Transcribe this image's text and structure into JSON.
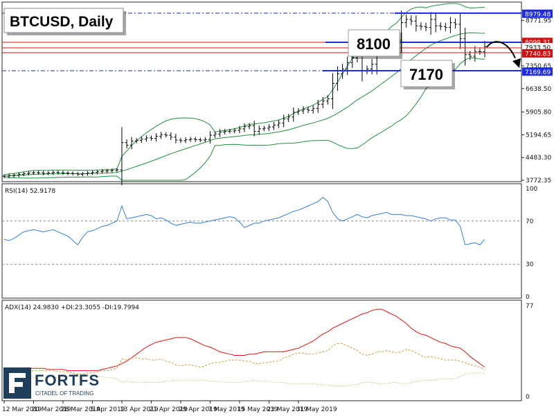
{
  "title": "BTCUSD, Daily",
  "logo": {
    "name": "FORTFS",
    "tagline": "CITADEL OF TRADING"
  },
  "annotations": {
    "level_high": "8100",
    "level_low": "7170"
  },
  "colors": {
    "price_bars": "#000000",
    "bollinger": "#1f8f3c",
    "rsi": "#2f7fd6",
    "adx": "#dd1111",
    "di_plus": "#c8a040",
    "di_minus": "#c8a040",
    "level_line": "#1e2de0",
    "resistance": "#d01010"
  },
  "chart_data": [
    {
      "type": "ohlc",
      "name": "price",
      "ylim": [
        3772.35,
        9300
      ],
      "y_ticks": [
        "8771.95",
        "7350.65",
        "6638.50",
        "5905.80",
        "5194.65",
        "4483.30",
        "3772.35"
      ],
      "x_ticks": [
        "12 Mar 2019",
        "20 Mar 2019",
        "28 Mar 2019",
        "5 Apr 2019",
        "13 Apr 2019",
        "21 Apr 2019",
        "29 Apr 2019",
        "7 May 2019",
        "15 May 2019",
        "23 May 2019",
        "31 May 2019"
      ],
      "price_tags": [
        {
          "value": 8979.48,
          "label": "8979.48",
          "style": "blue"
        },
        {
          "value": 8099.31,
          "label": "8099.31",
          "style": "red"
        },
        {
          "value": 7933.5,
          "label": "7933.50",
          "style": "plain"
        },
        {
          "value": 7740.83,
          "label": "7740.83",
          "style": "red"
        },
        {
          "value": 7169.69,
          "label": "7169.69",
          "style": "blue"
        }
      ],
      "close": [
        3900,
        3920,
        3930,
        3960,
        3980,
        4000,
        4010,
        4005,
        3990,
        4000,
        4020,
        4010,
        4000,
        3990,
        3980,
        3960,
        3975,
        4000,
        4020,
        4040,
        4060,
        4070,
        4080,
        4100,
        4950,
        4870,
        5000,
        5020,
        5060,
        5100,
        5080,
        5150,
        5200,
        5180,
        5120,
        5030,
        5010,
        5040,
        5060,
        5040,
        5030,
        5050,
        5180,
        5220,
        5280,
        5300,
        5310,
        5330,
        5380,
        5450,
        5480,
        5300,
        5380,
        5400,
        5440,
        5500,
        5560,
        5690,
        5750,
        5900,
        5940,
        5990,
        5960,
        6020,
        6150,
        6250,
        6320,
        6800,
        7100,
        7250,
        7450,
        7600,
        7700,
        7200,
        7250,
        7400,
        7850,
        7950,
        8000,
        8250,
        8150,
        8700,
        8800,
        8750,
        8600,
        8580,
        8550,
        8800,
        8600,
        8580,
        8550,
        8700,
        8650,
        8200,
        7700,
        7650,
        7800,
        7790,
        7950
      ]
    },
    {
      "type": "line",
      "name": "RSI(14) 52.9178",
      "ylim": [
        0,
        100
      ],
      "y_ticks": [
        "100",
        "70",
        "30",
        "0"
      ],
      "reference_lines": [
        70,
        30
      ],
      "values": [
        53,
        52,
        54,
        57,
        60,
        61,
        62,
        61,
        60,
        61,
        62,
        60,
        58,
        56,
        52,
        48,
        55,
        60,
        61,
        63,
        65,
        66,
        68,
        70,
        84,
        72,
        73,
        74,
        75,
        76,
        75,
        72,
        73,
        71,
        68,
        66,
        67,
        68,
        69,
        68,
        68,
        69,
        70,
        71,
        72,
        73,
        74,
        73,
        69,
        64,
        66,
        68,
        68,
        70,
        71,
        72,
        73,
        75,
        77,
        79,
        80,
        82,
        84,
        86,
        88,
        92,
        88,
        78,
        72,
        70,
        72,
        74,
        76,
        74,
        73,
        75,
        76,
        77,
        78,
        76,
        76,
        76,
        75,
        75,
        74,
        73,
        72,
        70,
        72,
        73,
        73,
        71,
        71,
        65,
        48,
        49,
        50,
        48,
        53
      ]
    },
    {
      "type": "line",
      "name": "ADX(14) 24.9830 +DI:23.3055 -DI:19.7994",
      "ylim": [
        0,
        77
      ],
      "y_ticks": [
        "77",
        "0"
      ],
      "series": [
        {
          "name": "ADX(14) 24.9830",
          "values": [
            24,
            24,
            24,
            24,
            24,
            24,
            24,
            24,
            24,
            23,
            23,
            23,
            23,
            22,
            22,
            22,
            22,
            22,
            22,
            22,
            23,
            24,
            25,
            26,
            28,
            30,
            33,
            36,
            39,
            42,
            44,
            46,
            47,
            48,
            49,
            50,
            50,
            50,
            49,
            47,
            45,
            43,
            42,
            40,
            38,
            37,
            36,
            35,
            35,
            35,
            36,
            36,
            37,
            38,
            38,
            38,
            38,
            38,
            39,
            40,
            41,
            43,
            45,
            47,
            50,
            53,
            55,
            58,
            60,
            62,
            64,
            66,
            68,
            70,
            71,
            73,
            74,
            74,
            72,
            70,
            68,
            65,
            62,
            58,
            55,
            53,
            52,
            50,
            48,
            46,
            45,
            43,
            42,
            41,
            38,
            34,
            31,
            28,
            25
          ]
        },
        {
          "name": "+DI:23.3055",
          "values": [
            20,
            20,
            21,
            21,
            21,
            21,
            22,
            22,
            22,
            22,
            22,
            21,
            21,
            21,
            20,
            19,
            19,
            20,
            20,
            21,
            22,
            22,
            23,
            24,
            32,
            31,
            33,
            33,
            32,
            32,
            31,
            31,
            32,
            30,
            29,
            27,
            26,
            27,
            27,
            26,
            25,
            26,
            28,
            29,
            29,
            30,
            31,
            31,
            31,
            30,
            30,
            28,
            28,
            29,
            29,
            30,
            30,
            33,
            34,
            36,
            37,
            37,
            36,
            36,
            37,
            38,
            39,
            43,
            45,
            45,
            43,
            41,
            39,
            36,
            35,
            36,
            38,
            38,
            39,
            38,
            37,
            38,
            40,
            39,
            37,
            35,
            33,
            34,
            33,
            32,
            31,
            31,
            31,
            30,
            29,
            27,
            26,
            25,
            23
          ]
        },
        {
          "name": "-DI:19.7994",
          "values": [
            18,
            18,
            18,
            17,
            17,
            17,
            16,
            16,
            16,
            16,
            16,
            16,
            17,
            17,
            18,
            19,
            19,
            18,
            18,
            17,
            17,
            16,
            16,
            15,
            12,
            13,
            12,
            12,
            12,
            12,
            12,
            12,
            12,
            13,
            13,
            14,
            14,
            14,
            14,
            14,
            14,
            14,
            13,
            13,
            13,
            12,
            12,
            12,
            12,
            13,
            13,
            14,
            13,
            13,
            13,
            12,
            12,
            12,
            11,
            11,
            11,
            11,
            11,
            11,
            10,
            10,
            10,
            9,
            9,
            9,
            9,
            10,
            10,
            12,
            12,
            12,
            11,
            11,
            11,
            12,
            12,
            11,
            11,
            12,
            13,
            13,
            14,
            14,
            14,
            15,
            15,
            15,
            15,
            17,
            19,
            20,
            20,
            20,
            20
          ]
        }
      ]
    }
  ]
}
